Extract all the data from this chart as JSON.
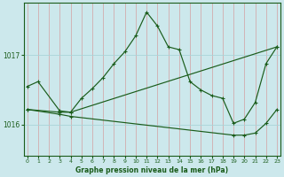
{
  "title": "Graphe pression niveau de la mer (hPa)",
  "bg_color": "#cce8ec",
  "grid_color": "#aad4d8",
  "line_color": "#1a5c1a",
  "x_ticks": [
    0,
    1,
    2,
    3,
    4,
    5,
    6,
    7,
    8,
    9,
    10,
    11,
    12,
    13,
    14,
    15,
    16,
    17,
    18,
    19,
    20,
    21,
    22,
    23
  ],
  "y_ticks": [
    1016,
    1017
  ],
  "ylim": [
    1015.55,
    1017.75
  ],
  "xlim": [
    -0.3,
    23.3
  ],
  "series": {
    "line1_jagged": {
      "x": [
        0,
        1,
        3,
        4,
        5,
        6,
        7,
        8,
        9,
        10,
        11,
        12,
        13,
        14,
        15,
        16,
        17,
        18,
        19,
        20,
        21,
        22,
        23
      ],
      "y": [
        1016.55,
        1016.62,
        1016.2,
        1016.18,
        1016.38,
        1016.52,
        1016.68,
        1016.88,
        1017.05,
        1017.28,
        1017.62,
        1017.42,
        1017.12,
        1017.08,
        1016.62,
        1016.5,
        1016.42,
        1016.38,
        1016.02,
        1016.08,
        1016.32,
        1016.88,
        1017.12
      ]
    },
    "line2_diagonal": {
      "x": [
        0,
        3,
        4,
        23
      ],
      "y": [
        1016.22,
        1016.18,
        1016.18,
        1017.12
      ]
    },
    "line3_flat": {
      "x": [
        0,
        3,
        4,
        19,
        20,
        21,
        22,
        23
      ],
      "y": [
        1016.22,
        1016.15,
        1016.12,
        1015.85,
        1015.85,
        1015.88,
        1016.02,
        1016.22
      ]
    }
  }
}
